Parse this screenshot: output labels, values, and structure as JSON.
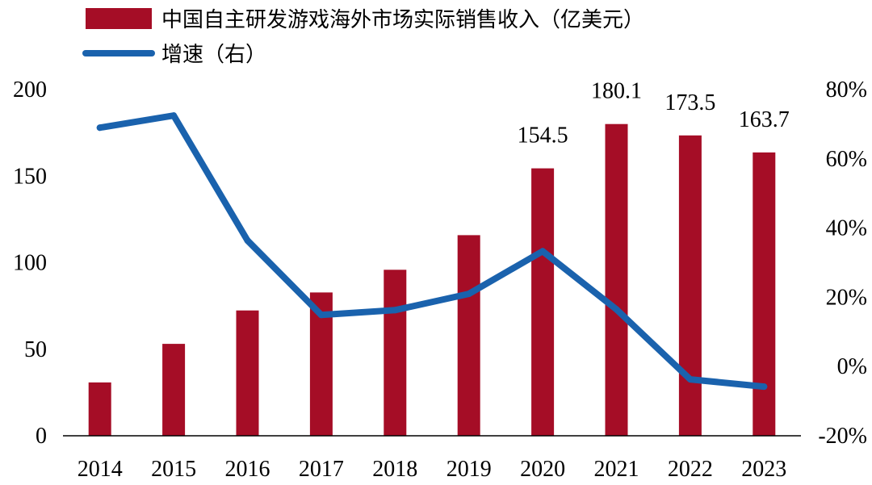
{
  "chart_data": {
    "type": "bar",
    "categories": [
      "2014",
      "2015",
      "2016",
      "2017",
      "2018",
      "2019",
      "2020",
      "2021",
      "2022",
      "2023"
    ],
    "series": [
      {
        "name": "中国自主研发游戏海外市场实际销售收入（亿美元）",
        "type": "bar",
        "axis": "left",
        "values": [
          30.8,
          53.1,
          72.4,
          82.8,
          95.9,
          115.9,
          154.5,
          180.1,
          173.5,
          163.7
        ],
        "labels": [
          "",
          "",
          "",
          "",
          "",
          "",
          "154.5",
          "180.1",
          "173.5",
          "163.7"
        ]
      },
      {
        "name": "增速（右）",
        "type": "line",
        "axis": "right",
        "values": [
          69.0,
          72.5,
          36.4,
          14.9,
          16.3,
          21.0,
          33.3,
          16.5,
          -3.7,
          -5.8
        ]
      }
    ],
    "ylim_left": [
      0,
      200
    ],
    "yticks_left": [
      "0",
      "50",
      "100",
      "150",
      "200"
    ],
    "ylim_right": [
      -20,
      80
    ],
    "yticks_right": [
      "-20%",
      "0%",
      "20%",
      "40%",
      "60%",
      "80%"
    ],
    "grid": false,
    "legend_position": "top-left",
    "colors": {
      "bar": "#a50d26",
      "line": "#1a62ad",
      "axis": "#000000"
    }
  }
}
